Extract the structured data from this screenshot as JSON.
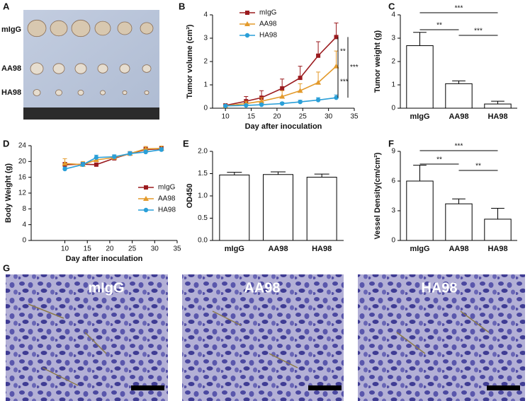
{
  "panels": {
    "A": {
      "letter": "A",
      "labels": [
        "mIgG",
        "AA98",
        "HA98"
      ]
    },
    "G": {
      "letter": "G",
      "labels": [
        "mIgG",
        "AA98",
        "HA98"
      ]
    }
  },
  "chart_data": [
    {
      "type": "line",
      "label": "B",
      "x_label": "Day after inoculation",
      "y_label": "Tumor volume (cm³)",
      "x": [
        10,
        14,
        17,
        21,
        24.5,
        28,
        31.5
      ],
      "xlim": [
        7.5,
        35
      ],
      "xticks": [
        10,
        15,
        20,
        25,
        30,
        35
      ],
      "ylim": [
        0,
        4
      ],
      "yticks": [
        0,
        1,
        2,
        3,
        4
      ],
      "legend": "upper left",
      "series": [
        {
          "name": "mIgG",
          "color": "#9b1b1f",
          "marker": "s",
          "values": [
            0.12,
            0.3,
            0.45,
            0.85,
            1.3,
            2.25,
            3.05
          ],
          "errors": [
            0.05,
            0.2,
            0.3,
            0.4,
            0.5,
            0.6,
            0.6
          ]
        },
        {
          "name": "AA98",
          "color": "#e39a2b",
          "marker": "^",
          "values": [
            0.1,
            0.2,
            0.3,
            0.5,
            0.75,
            1.1,
            1.8
          ],
          "errors": [
            0.05,
            0.1,
            0.15,
            0.25,
            0.3,
            0.45,
            0.65
          ]
        },
        {
          "name": "HA98",
          "color": "#2a9fd8",
          "marker": "o",
          "values": [
            0.1,
            0.12,
            0.15,
            0.2,
            0.27,
            0.35,
            0.45
          ],
          "errors": [
            0.03,
            0.05,
            0.05,
            0.05,
            0.07,
            0.1,
            0.12
          ]
        }
      ],
      "annotations": [
        "**",
        "***",
        "***"
      ]
    },
    {
      "type": "bar",
      "label": "C",
      "y_label": "Tumor weight (g)",
      "categories": [
        "mIgG",
        "AA98",
        "HA98"
      ],
      "values": [
        2.68,
        1.05,
        0.18
      ],
      "errors": [
        0.57,
        0.12,
        0.12
      ],
      "color": "#ffffff",
      "ylim": [
        0,
        4
      ],
      "yticks": [
        0,
        1,
        2,
        3,
        4
      ],
      "annotations": [
        "***",
        "**",
        "***"
      ]
    },
    {
      "type": "line",
      "label": "D",
      "x_label": "Day after inoculation",
      "y_label": "Body Weight (g)",
      "x": [
        10,
        14,
        17,
        21,
        24.5,
        28,
        31.5
      ],
      "xlim": [
        2.5,
        35
      ],
      "xticks": [
        10,
        15,
        20,
        25,
        30,
        35
      ],
      "ylim": [
        0,
        24
      ],
      "yticks": [
        0,
        4,
        8,
        12,
        16,
        20,
        24
      ],
      "legend": "center right",
      "series": [
        {
          "name": "mIgG",
          "color": "#9b1b1f",
          "marker": "s",
          "values": [
            19.2,
            19.3,
            19.2,
            20.8,
            22,
            23,
            23.2
          ],
          "errors": [
            0.6,
            0.5,
            0.4,
            0.4,
            0.5,
            0.6,
            0.6
          ]
        },
        {
          "name": "AA98",
          "color": "#e39a2b",
          "marker": "^",
          "values": [
            19.5,
            19.2,
            20.4,
            21,
            22,
            23.2,
            23.3
          ],
          "errors": [
            1.2,
            0.8,
            0.6,
            0.5,
            0.5,
            0.6,
            0.6
          ]
        },
        {
          "name": "HA98",
          "color": "#2a9fd8",
          "marker": "o",
          "values": [
            18.1,
            19.2,
            21,
            21.2,
            22,
            22.4,
            23
          ],
          "errors": [
            0.5,
            0.6,
            0.6,
            0.5,
            0.5,
            0.5,
            0.5
          ]
        }
      ],
      "annotations": []
    },
    {
      "type": "bar",
      "label": "E",
      "y_label": "OD450",
      "categories": [
        "mIgG",
        "AA98",
        "HA98"
      ],
      "values": [
        1.47,
        1.48,
        1.42
      ],
      "errors": [
        0.06,
        0.06,
        0.07
      ],
      "color": "#ffffff",
      "ylim": [
        0,
        2
      ],
      "yticks": [
        {
          "value": 0,
          "label": "0.0"
        },
        0.5,
        {
          "value": 1,
          "label": "1.0"
        },
        1.5,
        {
          "value": 2,
          "label": "2.0"
        }
      ],
      "annotations": []
    },
    {
      "type": "bar",
      "label": "F",
      "y_label": "Vessel Density(cm/cm²)",
      "categories": [
        "mIgG",
        "AA98",
        "HA98"
      ],
      "values": [
        6.0,
        3.7,
        2.15
      ],
      "errors": [
        1.6,
        0.5,
        1.1
      ],
      "color": "#ffffff",
      "ylim": [
        0,
        9
      ],
      "yticks": [
        0,
        3,
        6,
        9
      ],
      "annotations": [
        "***",
        "**",
        "**"
      ]
    }
  ]
}
